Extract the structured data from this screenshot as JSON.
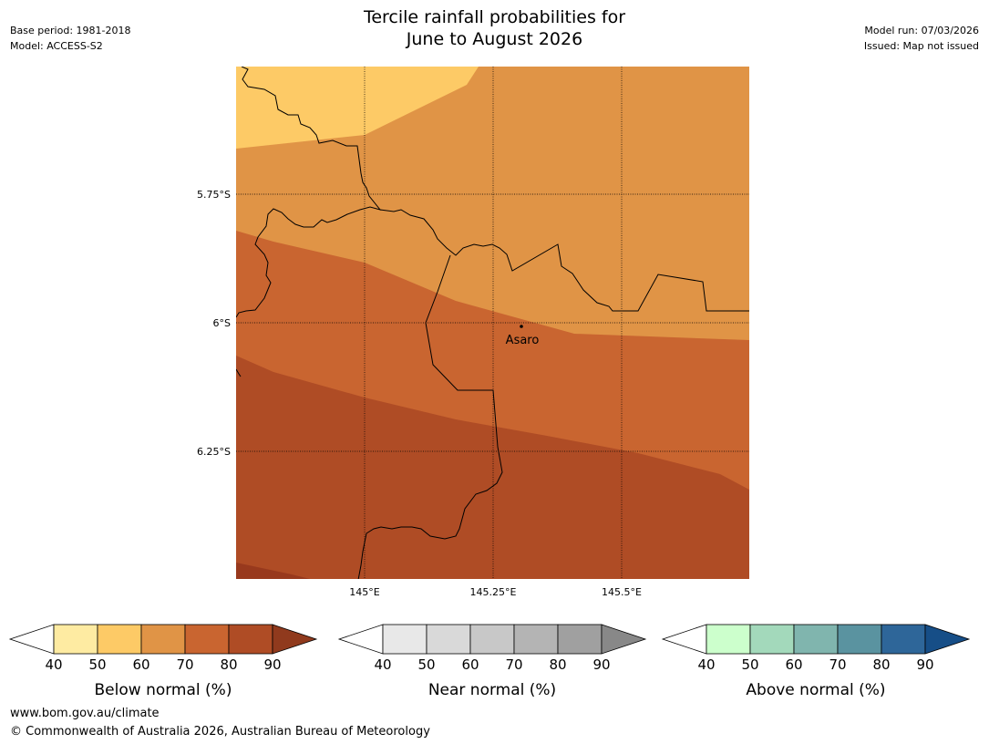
{
  "header": {
    "title_line1": "Tercile rainfall probabilities for",
    "title_line2": "June to August 2026",
    "base_period": "Base period: 1981-2018",
    "model": "Model: ACCESS-S2",
    "model_run": "Model run: 07/03/2026",
    "issued": "Issued: Map not issued"
  },
  "map": {
    "lat_labels": [
      "5.75°S",
      "6°S",
      "6.25°S"
    ],
    "lon_labels": [
      "145°E",
      "145.25°E",
      "145.5°E"
    ],
    "place_label": "Asaro",
    "colors": {
      "below_50": "#fdca66",
      "below_60": "#e09446",
      "below_70": "#c96530",
      "below_80": "#af4c25",
      "below_90": "#98391d"
    }
  },
  "colorbars": [
    {
      "title": "Below normal (%)",
      "ticks": [
        "40",
        "50",
        "60",
        "70",
        "80",
        "90"
      ],
      "colors": [
        "#ffffff",
        "#feeba2",
        "#fdca66",
        "#e09446",
        "#c96530",
        "#af4c25",
        "#903a1d"
      ]
    },
    {
      "title": "Near normal (%)",
      "ticks": [
        "40",
        "50",
        "60",
        "70",
        "80",
        "90"
      ],
      "colors": [
        "#ffffff",
        "#e8e8e8",
        "#d9d9d9",
        "#c8c8c8",
        "#b4b4b4",
        "#a0a0a0",
        "#888888"
      ]
    },
    {
      "title": "Above normal (%)",
      "ticks": [
        "40",
        "50",
        "60",
        "70",
        "80",
        "90"
      ],
      "colors": [
        "#ffffff",
        "#ccffcc",
        "#a3d9bb",
        "#80b5ae",
        "#5a93a0",
        "#2e6699",
        "#164e87"
      ]
    }
  ],
  "footer": {
    "url": "www.bom.gov.au/climate",
    "copyright": "© Commonwealth of Australia 2026, Australian Bureau of Meteorology"
  }
}
